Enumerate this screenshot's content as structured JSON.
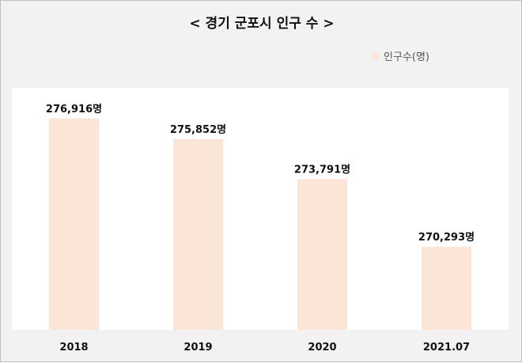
{
  "chart_data": {
    "type": "bar",
    "title": "< 경기 군포시 인구 수 >",
    "categories": [
      "2018",
      "2019",
      "2020",
      "2021.07"
    ],
    "series": [
      {
        "name": "인구수(명)",
        "values": [
          276916,
          275852,
          273791,
          270293
        ],
        "data_labels": [
          "276,916명",
          "275,852명",
          "273,791명",
          "270,293명"
        ],
        "color": "#fbe5d6"
      }
    ],
    "ylim": [
      266000,
      278500
    ],
    "grid": false,
    "legend_position": "top-right",
    "xlabel": "",
    "ylabel": ""
  }
}
